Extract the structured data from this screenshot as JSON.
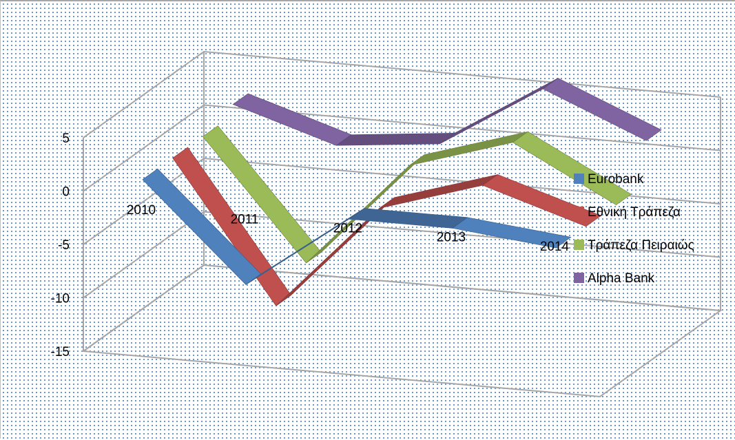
{
  "chart_data": {
    "type": "line",
    "style": "3d-ribbon",
    "categories": [
      "2010",
      "2011",
      "2012",
      "2013",
      "2014"
    ],
    "series": [
      {
        "name": "Eurobank",
        "color": "#4f81bd",
        "values": [
          1,
          -8,
          -1,
          -1,
          -2
        ]
      },
      {
        "name": "Εθνική Τράπεζα",
        "color": "#c0504d",
        "values": [
          1,
          -12,
          -2,
          1,
          -2
        ]
      },
      {
        "name": "Τράπεζα Πειραιώς",
        "color": "#9bbb59",
        "values": [
          1,
          -10,
          0,
          3,
          -2
        ]
      },
      {
        "name": "Alpha Bank",
        "color": "#8064a2",
        "values": [
          2,
          -1,
          0,
          6,
          2
        ]
      }
    ],
    "ylim": [
      -15,
      5
    ],
    "yticks": [
      "5",
      "0",
      "-5",
      "-10",
      "-15"
    ],
    "grid": true,
    "legend": "right"
  }
}
